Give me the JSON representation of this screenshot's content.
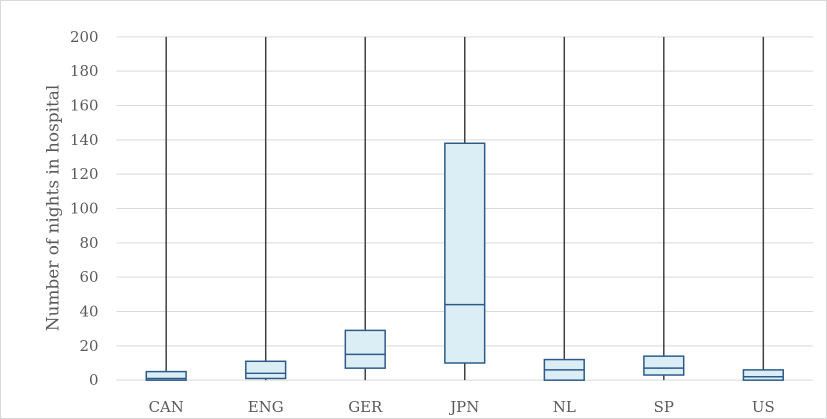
{
  "chart_data": {
    "type": "box",
    "ylabel": "Number of nights in hospital",
    "xlabel": "",
    "ylim": [
      0,
      200
    ],
    "yticks": [
      0,
      20,
      40,
      60,
      80,
      100,
      120,
      140,
      160,
      180,
      200
    ],
    "grid": true,
    "categories": [
      "CAN",
      "ENG",
      "GER",
      "JPN",
      "NL",
      "SP",
      "US"
    ],
    "boxes": [
      {
        "category": "CAN",
        "min": 0,
        "q1": 0,
        "median": 1,
        "q3": 5,
        "max": 200
      },
      {
        "category": "ENG",
        "min": 0,
        "q1": 1,
        "median": 4,
        "q3": 11,
        "max": 200
      },
      {
        "category": "GER",
        "min": 0,
        "q1": 7,
        "median": 15,
        "q3": 29,
        "max": 200
      },
      {
        "category": "JPN",
        "min": 0,
        "q1": 10,
        "median": 44,
        "q3": 138,
        "max": 200
      },
      {
        "category": "NL",
        "min": 0,
        "q1": 0,
        "median": 6,
        "q3": 12,
        "max": 200
      },
      {
        "category": "SP",
        "min": 0,
        "q1": 3,
        "median": 7,
        "q3": 14,
        "max": 200
      },
      {
        "category": "US",
        "min": 0,
        "q1": 0,
        "median": 2,
        "q3": 6,
        "max": 200
      }
    ],
    "colors": {
      "box_fill": "#dbeef6",
      "box_stroke": "#2e5a8a",
      "whisker": "#404040",
      "grid": "#d9d9d9"
    }
  }
}
